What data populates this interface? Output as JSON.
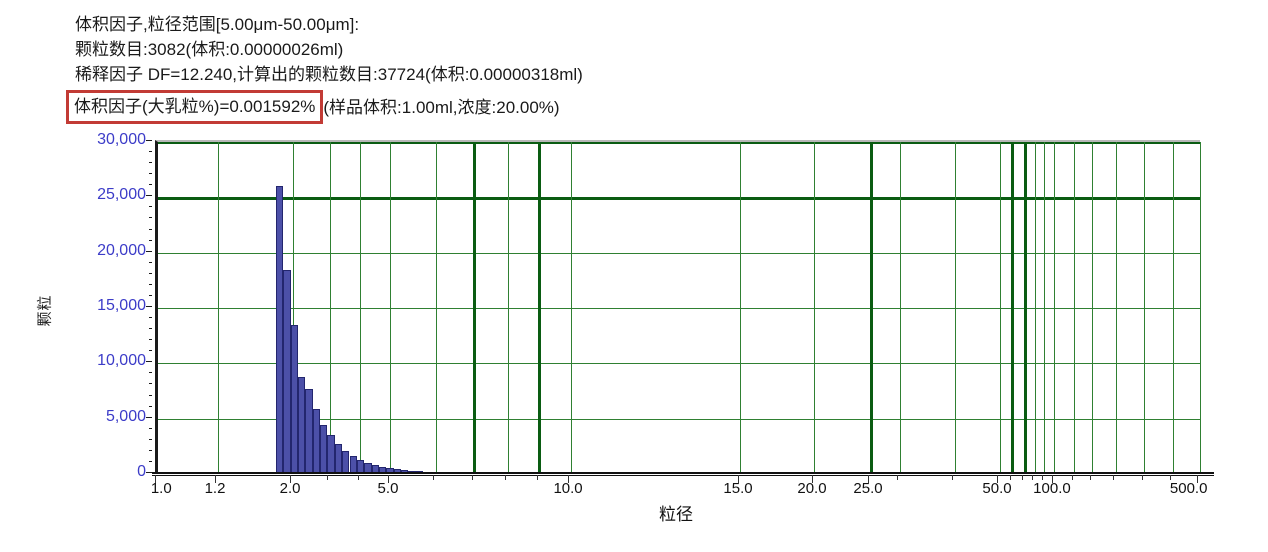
{
  "header": {
    "lines": [
      "体积因子,粒径范围[5.00μm-50.00μm]:",
      "颗粒数目:3082(体积:0.00000026ml)",
      "稀释因子 DF=12.240,计算出的颗粒数目:37724(体积:0.00000318ml)"
    ],
    "highlighted_text": "体积因子(大乳粒%)=0.001592%",
    "line4_rest": "(样品体积:1.00ml,浓度:20.00%)",
    "highlight_box_color": "#c23b35"
  },
  "chart_data": {
    "type": "bar",
    "title": "",
    "xlabel": "粒径",
    "ylabel": "颗粒",
    "x_scale": "piecewise-log (instrument custom), 1.0 to 500.0 um",
    "ylim": [
      0,
      30000
    ],
    "grid": true,
    "y_ticks": [
      {
        "label": "30,000",
        "value": 30000
      },
      {
        "label": "25,000",
        "value": 25000
      },
      {
        "label": "20,000",
        "value": 20000
      },
      {
        "label": "15,000",
        "value": 15000
      },
      {
        "label": "10,000",
        "value": 10000
      },
      {
        "label": "5,000",
        "value": 5000
      },
      {
        "label": "0",
        "value": 0
      }
    ],
    "x_tick_labels": [
      {
        "label": "1.0",
        "pct": 0
      },
      {
        "label": "1.2",
        "pct": 5.76
      },
      {
        "label": "2.0",
        "pct": 12.96
      },
      {
        "label": "5.0",
        "pct": 22.36
      },
      {
        "label": "10.0",
        "pct": 39.64
      },
      {
        "label": "15.0",
        "pct": 55.95
      },
      {
        "label": "20.0",
        "pct": 63.05
      },
      {
        "label": "25.0",
        "pct": 68.43
      },
      {
        "label": "50.0",
        "pct": 80.81
      },
      {
        "label": "100.0",
        "pct": 86.08
      },
      {
        "label": "500.0",
        "pct": 100
      }
    ],
    "gridlines_x": [
      {
        "value": 1.2,
        "pct": 5.76,
        "thick": false
      },
      {
        "value": 2,
        "pct": 12.96,
        "thick": false
      },
      {
        "value": 3,
        "pct": 16.51,
        "thick": false
      },
      {
        "value": 4,
        "pct": 19.48,
        "thick": false
      },
      {
        "value": 5,
        "pct": 22.36,
        "thick": false
      },
      {
        "value": 6,
        "pct": 26.68,
        "thick": false
      },
      {
        "value": 7,
        "pct": 30.42,
        "thick": true
      },
      {
        "value": 8,
        "pct": 33.59,
        "thick": false
      },
      {
        "value": 9,
        "pct": 36.66,
        "thick": true
      },
      {
        "value": 10,
        "pct": 39.64,
        "thick": false
      },
      {
        "value": 15,
        "pct": 55.95,
        "thick": false
      },
      {
        "value": 20,
        "pct": 63.05,
        "thick": false
      },
      {
        "value": 25,
        "pct": 68.43,
        "thick": true
      },
      {
        "value": 30,
        "pct": 71.21,
        "thick": false
      },
      {
        "value": 40,
        "pct": 76.49,
        "thick": false
      },
      {
        "value": 50,
        "pct": 80.81,
        "thick": false
      },
      {
        "value": 60,
        "pct": 82.05,
        "thick": true
      },
      {
        "value": 70,
        "pct": 83.21,
        "thick": true
      },
      {
        "value": 80,
        "pct": 84.17,
        "thick": false
      },
      {
        "value": 90,
        "pct": 85.12,
        "thick": false
      },
      {
        "value": 100,
        "pct": 86.08,
        "thick": false
      },
      {
        "value": 150,
        "pct": 88.0,
        "thick": false
      },
      {
        "value": 200,
        "pct": 89.73,
        "thick": false
      },
      {
        "value": 250,
        "pct": 91.94,
        "thick": false
      },
      {
        "value": 300,
        "pct": 94.72,
        "thick": false
      },
      {
        "value": 400,
        "pct": 97.41,
        "thick": false
      },
      {
        "value": 500,
        "pct": 100,
        "thick": false
      }
    ],
    "gridlines_y": [
      {
        "value": 30000,
        "thick": false
      },
      {
        "value": 25000,
        "thick": true
      },
      {
        "value": 20000,
        "thick": false
      },
      {
        "value": 15000,
        "thick": false
      },
      {
        "value": 10000,
        "thick": false
      },
      {
        "value": 5000,
        "thick": false
      }
    ],
    "bars": [
      {
        "size_um": 1.78,
        "count": 26000,
        "left_pct": 11.32,
        "width_pct": 0.705
      },
      {
        "size_um": 1.86,
        "count": 18400,
        "left_pct": 12.03,
        "width_pct": 0.705
      },
      {
        "size_um": 1.94,
        "count": 13500,
        "left_pct": 12.73,
        "width_pct": 0.705
      },
      {
        "size_um": 2.02,
        "count": 8800,
        "left_pct": 13.44,
        "width_pct": 0.705
      },
      {
        "size_um": 2.11,
        "count": 7700,
        "left_pct": 14.15,
        "width_pct": 0.705
      },
      {
        "size_um": 2.2,
        "count": 5900,
        "left_pct": 14.85,
        "width_pct": 0.705
      },
      {
        "size_um": 2.3,
        "count": 4400,
        "left_pct": 15.56,
        "width_pct": 0.705
      },
      {
        "size_um": 2.4,
        "count": 3500,
        "left_pct": 16.26,
        "width_pct": 0.705
      },
      {
        "size_um": 2.51,
        "count": 2700,
        "left_pct": 16.97,
        "width_pct": 0.705
      },
      {
        "size_um": 2.62,
        "count": 2100,
        "left_pct": 17.67,
        "width_pct": 0.705
      },
      {
        "size_um": 2.73,
        "count": 1600,
        "left_pct": 18.38,
        "width_pct": 0.705
      },
      {
        "size_um": 2.85,
        "count": 1250,
        "left_pct": 19.08,
        "width_pct": 0.705
      },
      {
        "size_um": 2.98,
        "count": 980,
        "left_pct": 19.79,
        "width_pct": 0.705
      },
      {
        "size_um": 3.11,
        "count": 780,
        "left_pct": 20.49,
        "width_pct": 0.705
      },
      {
        "size_um": 3.25,
        "count": 640,
        "left_pct": 21.2,
        "width_pct": 0.705
      },
      {
        "size_um": 3.39,
        "count": 520,
        "left_pct": 21.9,
        "width_pct": 0.705
      },
      {
        "size_um": 3.54,
        "count": 430,
        "left_pct": 22.61,
        "width_pct": 0.705
      },
      {
        "size_um": 3.69,
        "count": 360,
        "left_pct": 23.31,
        "width_pct": 0.705
      },
      {
        "size_um": 3.86,
        "count": 300,
        "left_pct": 24.02,
        "width_pct": 0.705
      },
      {
        "size_um": 4.03,
        "count": 250,
        "left_pct": 24.72,
        "width_pct": 0.705
      },
      {
        "size_um": 4.2,
        "count": 200,
        "left_pct": 25.43,
        "width_pct": 0.705
      }
    ],
    "colors": {
      "bar_fill": "#4c50a8",
      "bar_border": "#23266e",
      "grid": "#2f8032",
      "grid_emphasis": "#0a5c12",
      "y_label": "#3c3cc8",
      "axis": "#1a1a1a"
    }
  }
}
